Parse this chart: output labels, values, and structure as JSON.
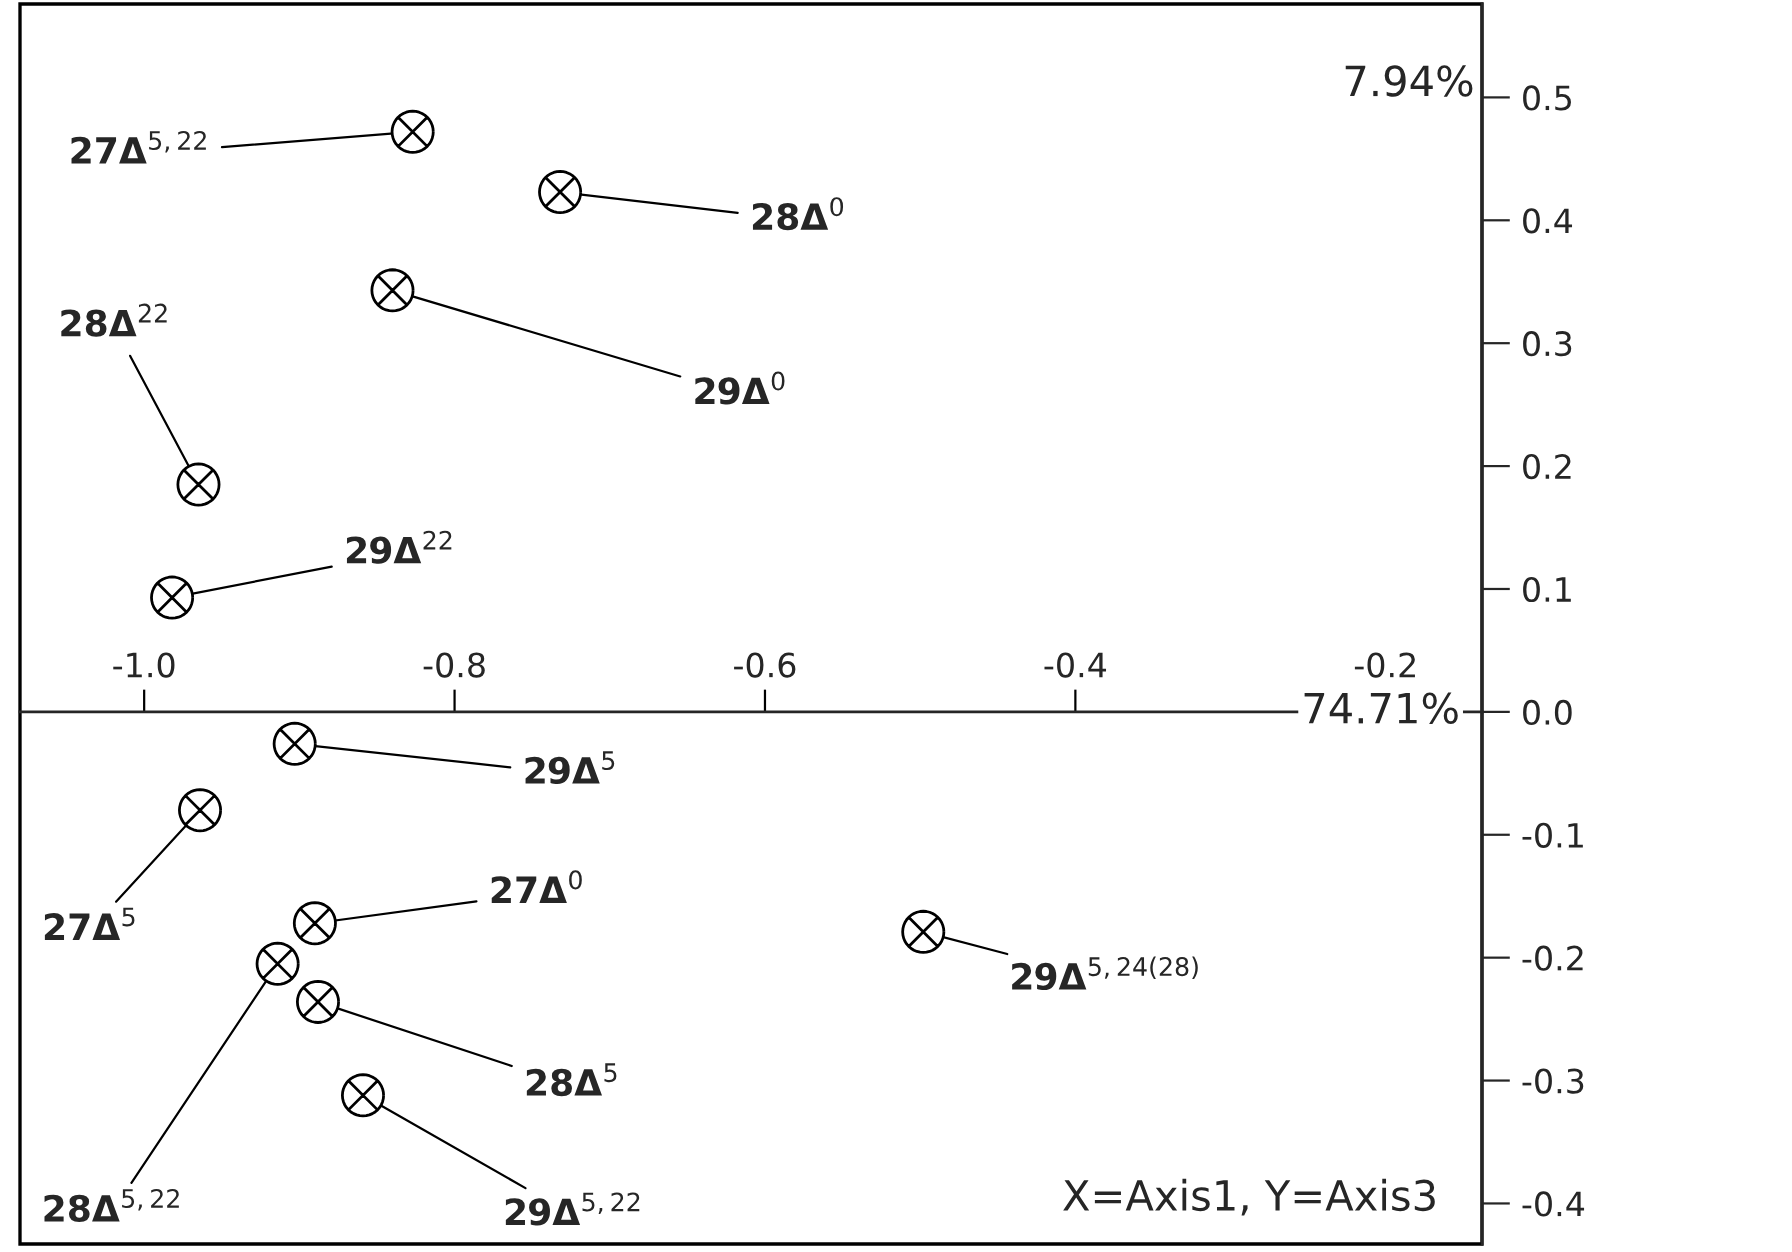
{
  "chart_data": {
    "type": "scatter",
    "x": [
      -0.827,
      -0.732,
      -0.84,
      -0.965,
      -0.982,
      -0.903,
      -0.964,
      -0.89,
      -0.498,
      -0.914,
      -0.888,
      -0.859
    ],
    "values": [
      0.472,
      0.423,
      0.343,
      0.185,
      0.093,
      -0.026,
      -0.08,
      -0.172,
      -0.179,
      -0.205,
      -0.236,
      -0.312
    ],
    "color": "#000000",
    "marker": "circle",
    "xlim": [
      -1.08,
      -0.138
    ],
    "xticks": [
      {
        "value": -1.0,
        "label": "-1.0"
      },
      -0.8,
      -0.6,
      -0.4,
      -0.2
    ],
    "ylim": [
      -0.433,
      0.576
    ],
    "yticks": [
      0.5,
      0.4,
      0.3,
      0.2,
      0.1,
      {
        "value": 0.0,
        "label": "0.0"
      },
      -0.1,
      -0.2,
      -0.3,
      -0.4
    ],
    "annotations": [
      {
        "text": "27Δ$^{5,22}$",
        "x": -0.827,
        "y": 0.472
      },
      {
        "text": "28Δ$^{0}$",
        "x": -0.732,
        "y": 0.423
      },
      {
        "text": "29Δ$^{0}$",
        "x": -0.84,
        "y": 0.343
      },
      {
        "text": "28Δ$^{22}$",
        "x": -0.965,
        "y": 0.185
      },
      {
        "text": "29Δ$^{22}$",
        "x": -0.982,
        "y": 0.093
      },
      {
        "text": "29Δ$^{5}$",
        "x": -0.903,
        "y": -0.026
      },
      {
        "text": "27Δ$^{5}$",
        "x": -0.964,
        "y": -0.08
      },
      {
        "text": "27Δ$^{0}$",
        "x": -0.89,
        "y": -0.172
      },
      {
        "text": "29Δ$^{5,24(28)}$",
        "x": -0.498,
        "y": -0.179
      },
      {
        "text": "28Δ$^{5,22}$",
        "x": -0.914,
        "y": -0.205
      },
      {
        "text": "28Δ$^{5}$",
        "x": -0.888,
        "y": -0.236
      },
      {
        "text": "29Δ$^{5,22}$",
        "x": -0.859,
        "y": -0.312
      },
      "7.94%",
      "74.71%",
      "X=Axis1, Y=Axis3"
    ]
  }
}
